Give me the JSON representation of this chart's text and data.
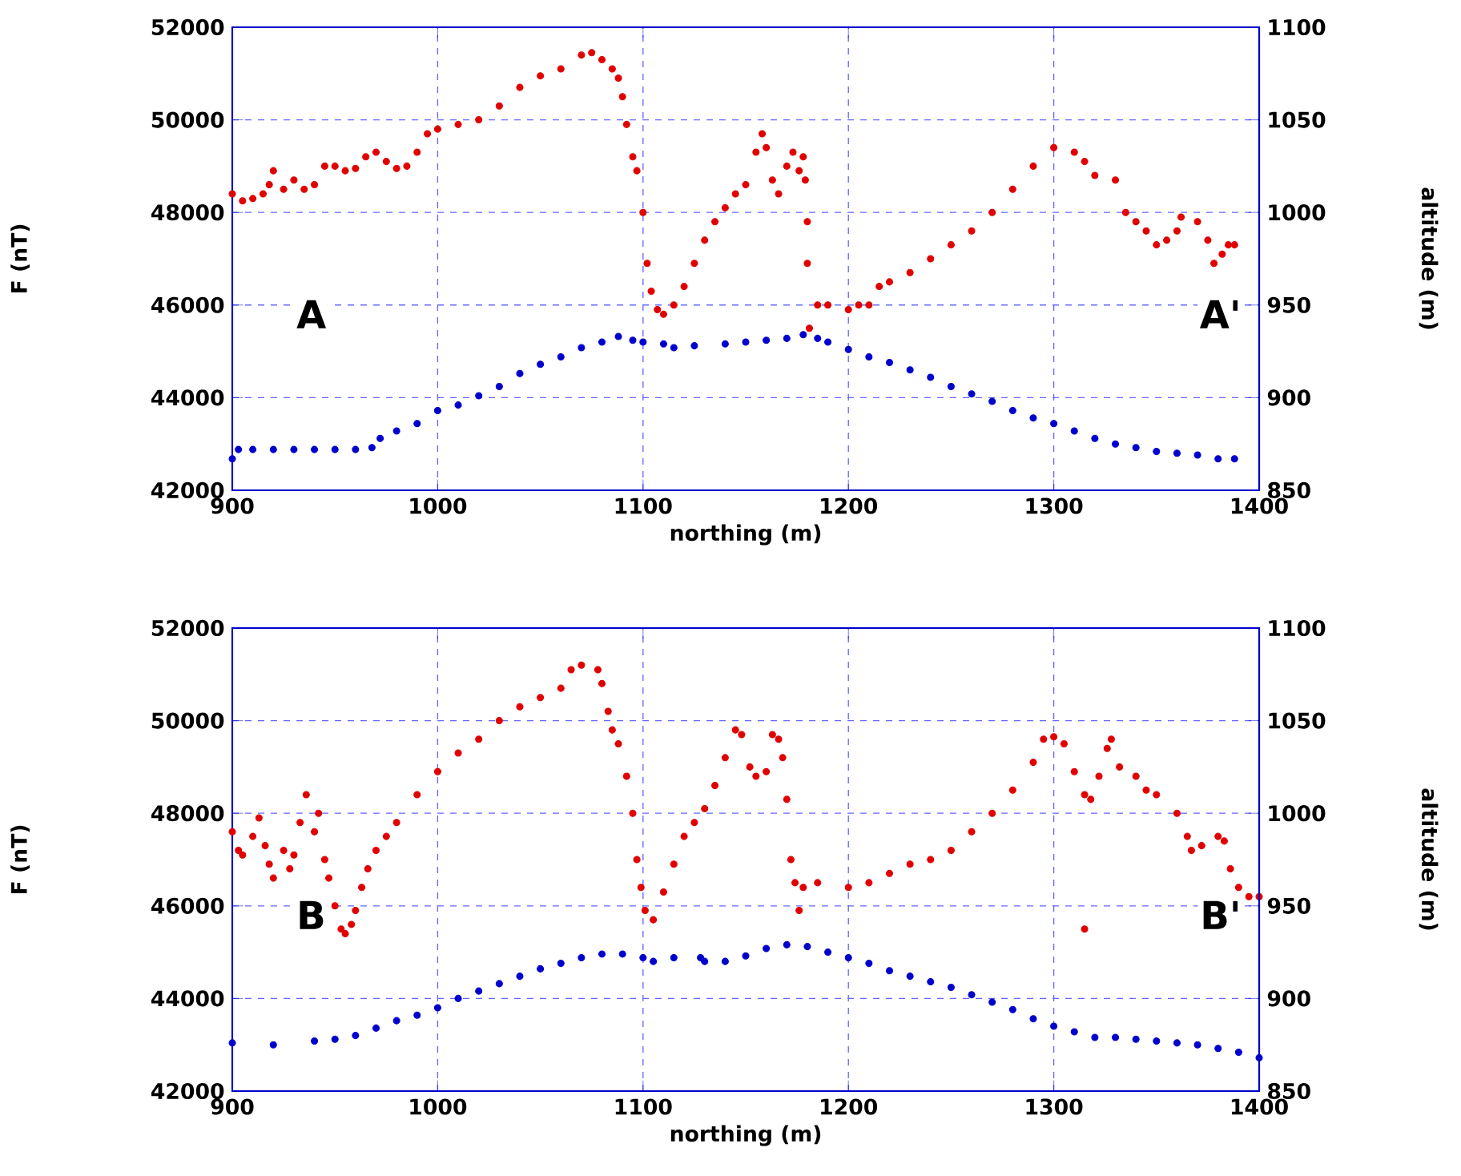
{
  "chart_data": [
    {
      "type": "scatter",
      "xlabel": "northing (m)",
      "ylabel": "F (nT)",
      "y2label": "altitude (m)",
      "xlim": [
        900,
        1400
      ],
      "ylim": [
        42000,
        52000
      ],
      "y2lim": [
        850,
        1100
      ],
      "xticks": [
        900,
        1000,
        1100,
        1200,
        1300,
        1400
      ],
      "yticks": [
        42000,
        44000,
        46000,
        48000,
        50000,
        52000
      ],
      "y2ticks": [
        850,
        900,
        950,
        1000,
        1050,
        1100
      ],
      "grid": true,
      "marker": "circle",
      "annotations": [
        "A",
        "A'"
      ],
      "series": [
        {
          "color": "#e00000",
          "x": [
            900,
            905,
            910,
            915,
            918,
            920,
            925,
            930,
            935,
            940,
            945,
            950,
            955,
            960,
            965,
            970,
            975,
            980,
            985,
            990,
            995,
            1000,
            1010,
            1020,
            1030,
            1040,
            1050,
            1060,
            1070,
            1075,
            1080,
            1085,
            1088,
            1090,
            1092,
            1095,
            1097,
            1100,
            1102,
            1104,
            1107,
            1110,
            1115,
            1120,
            1125,
            1130,
            1135,
            1140,
            1145,
            1150,
            1155,
            1158,
            1160,
            1163,
            1166,
            1170,
            1173,
            1176,
            1178,
            1179,
            1180,
            1180,
            1181,
            1185,
            1190,
            1200,
            1205,
            1210,
            1215,
            1220,
            1230,
            1240,
            1250,
            1260,
            1270,
            1280,
            1290,
            1300,
            1310,
            1315,
            1320,
            1330,
            1335,
            1340,
            1345,
            1350,
            1355,
            1360,
            1362,
            1370,
            1375,
            1378,
            1382,
            1385,
            1388
          ],
          "values": [
            48400,
            48250,
            48300,
            48400,
            48600,
            48900,
            48500,
            48700,
            48500,
            48600,
            49000,
            49000,
            48900,
            48950,
            49200,
            49300,
            49100,
            48950,
            49000,
            49300,
            49700,
            49800,
            49900,
            50000,
            50300,
            50700,
            50950,
            51100,
            51400,
            51450,
            51300,
            51100,
            50900,
            50500,
            49900,
            49200,
            48900,
            48000,
            46900,
            46300,
            45900,
            45800,
            46000,
            46400,
            46900,
            47400,
            47800,
            48100,
            48400,
            48600,
            49300,
            49700,
            49400,
            48700,
            48400,
            49000,
            49300,
            48900,
            49200,
            48700,
            47800,
            46900,
            45500,
            46000,
            46000,
            45900,
            46000,
            46000,
            46400,
            46500,
            46700,
            47000,
            47300,
            47600,
            48000,
            48500,
            49000,
            49400,
            49300,
            49100,
            48800,
            48700,
            48000,
            47800,
            47600,
            47300,
            47400,
            47600,
            47900,
            47800,
            47400,
            46900,
            47100,
            47300,
            47300
          ]
        },
        {
          "color": "#0000cc",
          "axis": "y2",
          "x": [
            900,
            903,
            910,
            920,
            930,
            940,
            950,
            960,
            968,
            972,
            980,
            990,
            1000,
            1010,
            1020,
            1030,
            1040,
            1050,
            1060,
            1070,
            1080,
            1088,
            1095,
            1100,
            1110,
            1115,
            1125,
            1140,
            1150,
            1160,
            1170,
            1178,
            1185,
            1190,
            1200,
            1210,
            1220,
            1230,
            1240,
            1250,
            1260,
            1270,
            1280,
            1290,
            1300,
            1310,
            1320,
            1330,
            1340,
            1350,
            1360,
            1370,
            1380,
            1388
          ],
          "values": [
            867,
            872,
            872,
            872,
            872,
            872,
            872,
            872,
            873,
            878,
            882,
            886,
            893,
            896,
            901,
            906,
            913,
            918,
            922,
            927,
            930,
            933,
            931,
            930,
            929,
            927,
            928,
            929,
            930,
            931,
            932,
            934,
            932,
            930,
            926,
            922,
            919,
            915,
            911,
            906,
            902,
            898,
            893,
            889,
            886,
            882,
            878,
            875,
            873,
            871,
            870,
            869,
            867,
            867
          ]
        }
      ]
    },
    {
      "type": "scatter",
      "xlabel": "northing (m)",
      "ylabel": "F (nT)",
      "y2label": "altitude (m)",
      "xlim": [
        900,
        1400
      ],
      "ylim": [
        42000,
        52000
      ],
      "y2lim": [
        850,
        1100
      ],
      "xticks": [
        900,
        1000,
        1100,
        1200,
        1300,
        1400
      ],
      "yticks": [
        42000,
        44000,
        46000,
        48000,
        50000,
        52000
      ],
      "y2ticks": [
        850,
        900,
        950,
        1000,
        1050,
        1100
      ],
      "grid": true,
      "marker": "circle",
      "annotations": [
        "B",
        "B'"
      ],
      "series": [
        {
          "color": "#e00000",
          "x": [
            900,
            903,
            905,
            910,
            913,
            916,
            918,
            920,
            925,
            928,
            930,
            933,
            936,
            940,
            942,
            945,
            947,
            950,
            953,
            955,
            958,
            960,
            963,
            966,
            970,
            975,
            980,
            990,
            1000,
            1010,
            1020,
            1030,
            1040,
            1050,
            1060,
            1065,
            1070,
            1078,
            1080,
            1083,
            1085,
            1088,
            1092,
            1095,
            1097,
            1099,
            1101,
            1105,
            1110,
            1115,
            1120,
            1125,
            1130,
            1135,
            1140,
            1145,
            1148,
            1152,
            1155,
            1160,
            1163,
            1166,
            1168,
            1170,
            1172,
            1174,
            1176,
            1178,
            1185,
            1200,
            1210,
            1220,
            1230,
            1240,
            1250,
            1260,
            1270,
            1280,
            1290,
            1295,
            1300,
            1305,
            1310,
            1315,
            1318,
            1322,
            1326,
            1328,
            1332,
            1340,
            1345,
            1350,
            1360,
            1365,
            1367,
            1372,
            1380,
            1383,
            1386,
            1390,
            1395,
            1400,
            1315
          ],
          "values": [
            47600,
            47200,
            47100,
            47500,
            47900,
            47300,
            46900,
            46600,
            47200,
            46800,
            47100,
            47800,
            48400,
            47600,
            48000,
            47000,
            46600,
            46000,
            45500,
            45400,
            45600,
            45900,
            46400,
            46800,
            47200,
            47500,
            47800,
            48400,
            48900,
            49300,
            49600,
            50000,
            50300,
            50500,
            50700,
            51100,
            51200,
            51100,
            50800,
            50200,
            49800,
            49500,
            48800,
            48000,
            47000,
            46400,
            45900,
            45700,
            46300,
            46900,
            47500,
            47800,
            48100,
            48600,
            49200,
            49800,
            49700,
            49000,
            48800,
            48900,
            49700,
            49600,
            49200,
            48300,
            47000,
            46500,
            45900,
            46400,
            46500,
            46400,
            46500,
            46700,
            46900,
            47000,
            47200,
            47600,
            48000,
            48500,
            49100,
            49600,
            49650,
            49500,
            48900,
            48400,
            48300,
            48800,
            49400,
            49600,
            49000,
            48800,
            48500,
            48400,
            48000,
            47500,
            47200,
            47300,
            47500,
            47400,
            46800,
            46400,
            46200,
            46200,
            45500
          ]
        },
        {
          "color": "#0000cc",
          "axis": "y2",
          "x": [
            900,
            920,
            940,
            950,
            960,
            970,
            980,
            990,
            1000,
            1010,
            1020,
            1030,
            1040,
            1050,
            1060,
            1070,
            1080,
            1090,
            1100,
            1105,
            1115,
            1128,
            1130,
            1140,
            1150,
            1160,
            1170,
            1180,
            1190,
            1200,
            1210,
            1220,
            1230,
            1240,
            1250,
            1260,
            1270,
            1280,
            1290,
            1300,
            1310,
            1320,
            1330,
            1340,
            1350,
            1360,
            1370,
            1380,
            1390,
            1400
          ],
          "values": [
            876,
            875,
            877,
            878,
            880,
            884,
            888,
            891,
            895,
            900,
            904,
            908,
            912,
            916,
            919,
            922,
            924,
            924,
            922,
            920,
            922,
            922,
            920,
            920,
            923,
            927,
            929,
            928,
            925,
            922,
            919,
            915,
            912,
            909,
            906,
            902,
            898,
            894,
            889,
            885,
            882,
            879,
            879,
            878,
            877,
            876,
            875,
            873,
            871,
            868
          ]
        }
      ]
    }
  ]
}
